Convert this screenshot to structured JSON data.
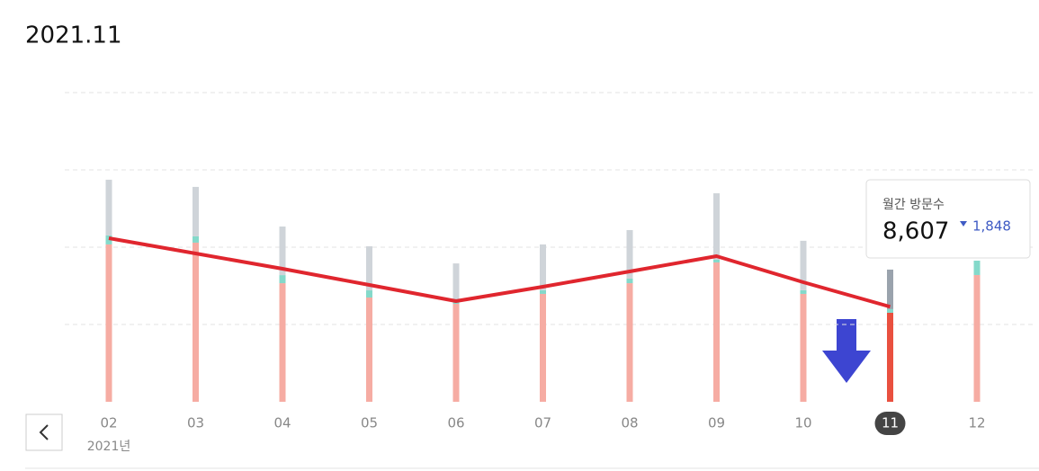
{
  "chart_data": {
    "type": "stacked_bar_line",
    "title": "2021.11",
    "categories": [
      "02",
      "03",
      "04",
      "05",
      "06",
      "07",
      "08",
      "09",
      "10",
      "11",
      "12"
    ],
    "year_label": "2021년",
    "ylim": [
      0,
      28000
    ],
    "yticks": [
      7000,
      14000,
      21000,
      28000
    ],
    "grid": true,
    "series": [
      {
        "name": "base",
        "color": "#f6aca3",
        "highlight_color": "#e9503f",
        "values": [
          14250,
          14410,
          10740,
          9440,
          8870,
          9770,
          10740,
          12620,
          9770,
          8060,
          11480
        ]
      },
      {
        "name": "mid",
        "color": "#84d9ca",
        "highlight_color": "#84d9ca",
        "values": [
          810,
          570,
          730,
          650,
          160,
          330,
          410,
          240,
          330,
          330,
          1300
        ]
      },
      {
        "name": "top",
        "color": "#cfd4d9",
        "highlight_color": "#9aa3ad",
        "values": [
          5050,
          4480,
          4400,
          3990,
          3500,
          4150,
          4400,
          6020,
          4480,
          3580,
          0
        ]
      }
    ],
    "line": {
      "color": "#e0262e",
      "values": [
        14815,
        13431,
        12047,
        10582,
        9117,
        10419,
        11803,
        13187,
        10826,
        8607,
        null
      ]
    },
    "selected_index": 9,
    "tooltip": {
      "label": "월간 방문수",
      "value": "8,607",
      "change": "1,848"
    }
  }
}
